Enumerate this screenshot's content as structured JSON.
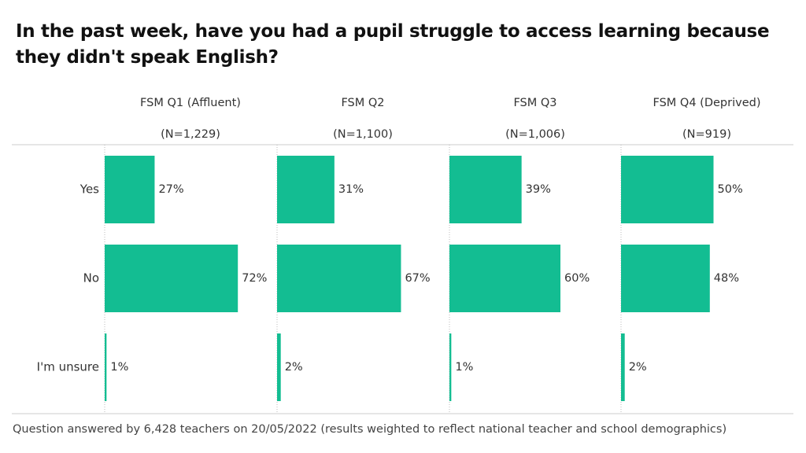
{
  "title": "In the past week, have you had a pupil struggle to access learning because they didn't speak English?",
  "note": "Question answered by 6,428 teachers on 20/05/2022 (results weighted to reflect national teacher and school demographics)",
  "chart_data": [
    {
      "type": "bar",
      "orientation": "horizontal",
      "title": "FSM Q1 (Affluent)",
      "subtitle": "(N=1,229)",
      "color": "#13bd92",
      "categories": [
        "Yes",
        "No",
        "I'm unsure"
      ],
      "values": [
        27,
        72,
        1
      ],
      "value_labels": [
        "27%",
        "72%",
        "1%"
      ]
    },
    {
      "type": "bar",
      "orientation": "horizontal",
      "title": "FSM Q2",
      "subtitle": "(N=1,100)",
      "color": "#13bd92",
      "values": [
        31,
        67,
        2
      ],
      "value_labels": [
        "31%",
        "67%",
        "2%"
      ]
    },
    {
      "type": "bar",
      "orientation": "horizontal",
      "title": "FSM Q3",
      "subtitle": "(N=1,006)",
      "color": "#13bd92",
      "values": [
        39,
        60,
        1
      ],
      "value_labels": [
        "39%",
        "60%",
        "1%"
      ]
    },
    {
      "type": "bar",
      "orientation": "horizontal",
      "title": "FSM Q4 (Deprived)",
      "subtitle": "(N=919)",
      "color": "#13bd92",
      "values": [
        50,
        48,
        2
      ],
      "value_labels": [
        "50%",
        "48%",
        "2%"
      ]
    }
  ]
}
